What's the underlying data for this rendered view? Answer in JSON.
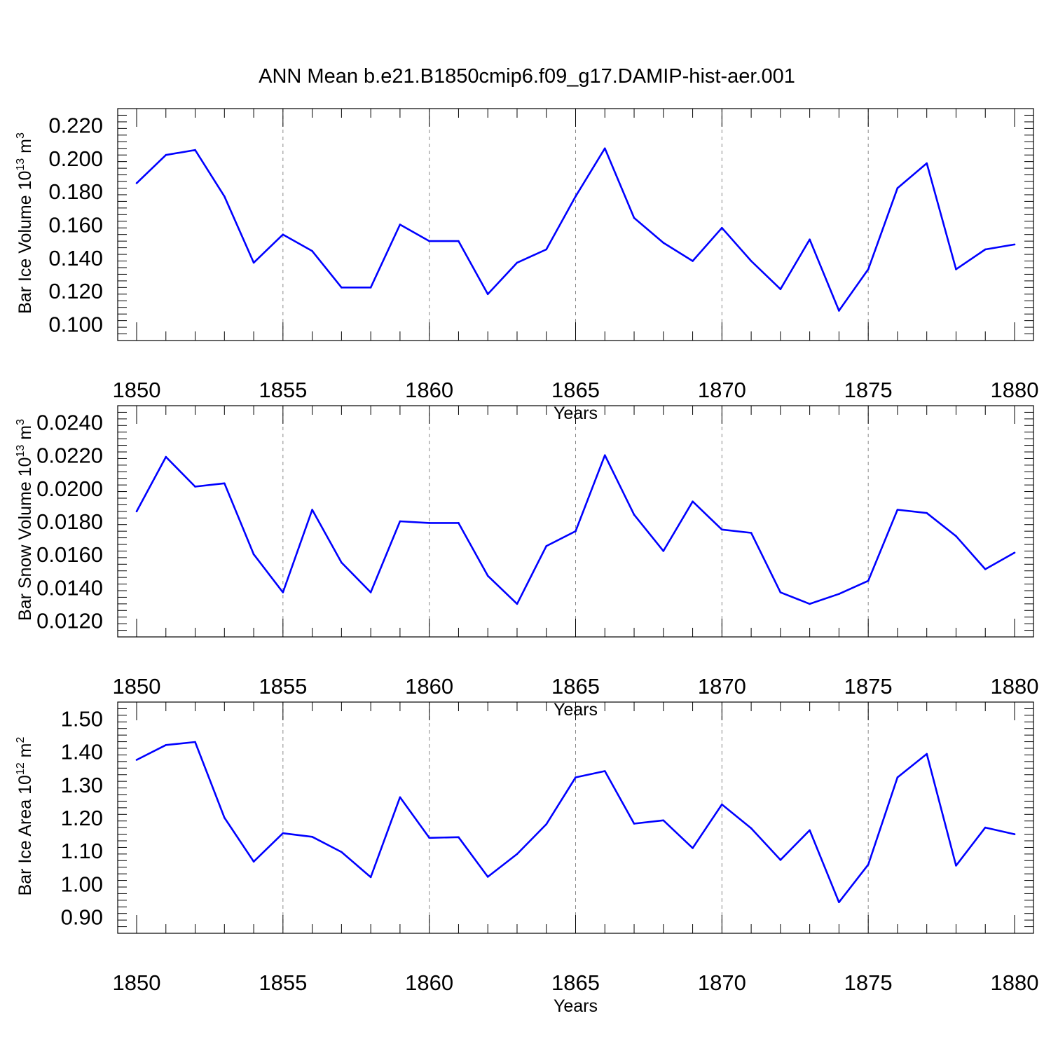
{
  "figure": {
    "title": "ANN Mean b.e21.B1850cmip6.f09_g17.DAMIP-hist-aer.001",
    "line_color": "#0000ff",
    "grid_color": "#888888"
  },
  "chart_data": [
    {
      "type": "line",
      "title": "ANN Mean b.e21.B1850cmip6.f09_g17.DAMIP-hist-aer.001",
      "xlabel": "Years",
      "ylabel": "Bar Ice Volume 10¹³ m³",
      "ylabel_parts": {
        "base": "Bar Ice Volume 10",
        "exp1": "13",
        "mid": " m",
        "exp2": "3"
      },
      "xlim": [
        1850,
        1880
      ],
      "ylim": [
        0.09,
        0.23
      ],
      "xticks": [
        1850,
        1855,
        1860,
        1865,
        1870,
        1875,
        1880
      ],
      "xtick_labels": [
        "1850",
        "1855",
        "1860",
        "1865",
        "1870",
        "1875",
        "1880"
      ],
      "yticks": [
        0.1,
        0.12,
        0.14,
        0.16,
        0.18,
        0.2,
        0.22
      ],
      "ytick_labels": [
        "0.100",
        "0.120",
        "0.140",
        "0.160",
        "0.180",
        "0.200",
        "0.220"
      ],
      "grid": "x-dashed",
      "x": [
        1850,
        1851,
        1852,
        1853,
        1854,
        1855,
        1856,
        1857,
        1858,
        1859,
        1860,
        1861,
        1862,
        1863,
        1864,
        1865,
        1866,
        1867,
        1868,
        1869,
        1870,
        1871,
        1872,
        1873,
        1874,
        1875,
        1876,
        1877,
        1878,
        1879,
        1880
      ],
      "y": [
        0.185,
        0.202,
        0.205,
        0.177,
        0.137,
        0.154,
        0.144,
        0.122,
        0.122,
        0.16,
        0.15,
        0.15,
        0.118,
        0.137,
        0.145,
        0.177,
        0.206,
        0.164,
        0.149,
        0.138,
        0.158,
        0.138,
        0.121,
        0.151,
        0.108,
        0.133,
        0.182,
        0.197,
        0.133,
        0.145,
        0.148
      ]
    },
    {
      "type": "line",
      "xlabel": "Years",
      "ylabel": "Bar Snow Volume 10¹³ m³",
      "ylabel_parts": {
        "base": "Bar Snow Volume 10",
        "exp1": "13",
        "mid": " m",
        "exp2": "3"
      },
      "xlim": [
        1850,
        1880
      ],
      "ylim": [
        0.011,
        0.025
      ],
      "xticks": [
        1850,
        1855,
        1860,
        1865,
        1870,
        1875,
        1880
      ],
      "xtick_labels": [
        "1850",
        "1855",
        "1860",
        "1865",
        "1870",
        "1875",
        "1880"
      ],
      "yticks": [
        0.012,
        0.014,
        0.016,
        0.018,
        0.02,
        0.022,
        0.024
      ],
      "ytick_labels": [
        "0.0120",
        "0.0140",
        "0.0160",
        "0.0180",
        "0.0200",
        "0.0220",
        "0.0240"
      ],
      "grid": "x-dashed",
      "x": [
        1850,
        1851,
        1852,
        1853,
        1854,
        1855,
        1856,
        1857,
        1858,
        1859,
        1860,
        1861,
        1862,
        1863,
        1864,
        1865,
        1866,
        1867,
        1868,
        1869,
        1870,
        1871,
        1872,
        1873,
        1874,
        1875,
        1876,
        1877,
        1878,
        1879,
        1880
      ],
      "y": [
        0.0186,
        0.0219,
        0.0201,
        0.0203,
        0.016,
        0.0137,
        0.0187,
        0.0155,
        0.0137,
        0.018,
        0.0179,
        0.0179,
        0.0147,
        0.013,
        0.0165,
        0.0174,
        0.022,
        0.0184,
        0.0162,
        0.0192,
        0.0175,
        0.0173,
        0.0137,
        0.013,
        0.0136,
        0.0144,
        0.0187,
        0.0185,
        0.0171,
        0.0151,
        0.0161
      ]
    },
    {
      "type": "line",
      "xlabel": "Years",
      "ylabel": "Bar Ice Area 10¹² m²",
      "ylabel_parts": {
        "base": "Bar Ice Area 10",
        "exp1": "12",
        "mid": " m",
        "exp2": "2"
      },
      "xlim": [
        1850,
        1880
      ],
      "ylim": [
        0.85,
        1.55
      ],
      "xticks": [
        1850,
        1855,
        1860,
        1865,
        1870,
        1875,
        1880
      ],
      "xtick_labels": [
        "1850",
        "1855",
        "1860",
        "1865",
        "1870",
        "1875",
        "1880"
      ],
      "yticks": [
        0.9,
        1.0,
        1.1,
        1.2,
        1.3,
        1.4,
        1.5
      ],
      "ytick_labels": [
        "0.90",
        "1.00",
        "1.10",
        "1.20",
        "1.30",
        "1.40",
        "1.50"
      ],
      "grid": "x-dashed",
      "x": [
        1850,
        1851,
        1852,
        1853,
        1854,
        1855,
        1856,
        1857,
        1858,
        1859,
        1860,
        1861,
        1862,
        1863,
        1864,
        1865,
        1866,
        1867,
        1868,
        1869,
        1870,
        1871,
        1872,
        1873,
        1874,
        1875,
        1876,
        1877,
        1878,
        1879,
        1880
      ],
      "y": [
        1.375,
        1.42,
        1.429,
        1.2,
        1.067,
        1.153,
        1.142,
        1.096,
        1.02,
        1.262,
        1.139,
        1.141,
        1.021,
        1.09,
        1.18,
        1.322,
        1.341,
        1.182,
        1.192,
        1.108,
        1.24,
        1.168,
        1.072,
        1.162,
        0.944,
        1.058,
        1.322,
        1.393,
        1.055,
        1.17,
        1.15
      ]
    }
  ]
}
